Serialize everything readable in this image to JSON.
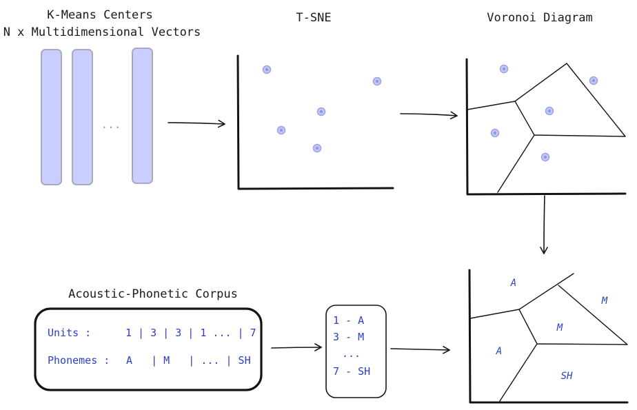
{
  "titles": {
    "kmeans_line1": "K-Means Centers",
    "kmeans_line2": "N x Multidimensional Vectors",
    "tsne": "T-SNE",
    "voronoi": "Voronoi Diagram",
    "corpus": "Acoustic-Phonetic Corpus"
  },
  "kmeans": {
    "ellipsis": "..."
  },
  "corpus": {
    "units_label": "Units :",
    "units_value": "1 | 3 | 3 | 1 ... | 7",
    "phonemes_label": "Phonemes :",
    "phonemes_value": "A   | M   | ... | SH"
  },
  "mapping": {
    "items": [
      "1 - A",
      "3 - M",
      "...",
      "7 - SH"
    ]
  },
  "regions": {
    "labels": [
      "A",
      "M",
      "M",
      "A",
      "SH"
    ]
  },
  "colors": {
    "ink": "#141414",
    "accent_blue": "#2b3ec9",
    "bar_fill": "#c9ceff",
    "point": "#8e97e3"
  }
}
